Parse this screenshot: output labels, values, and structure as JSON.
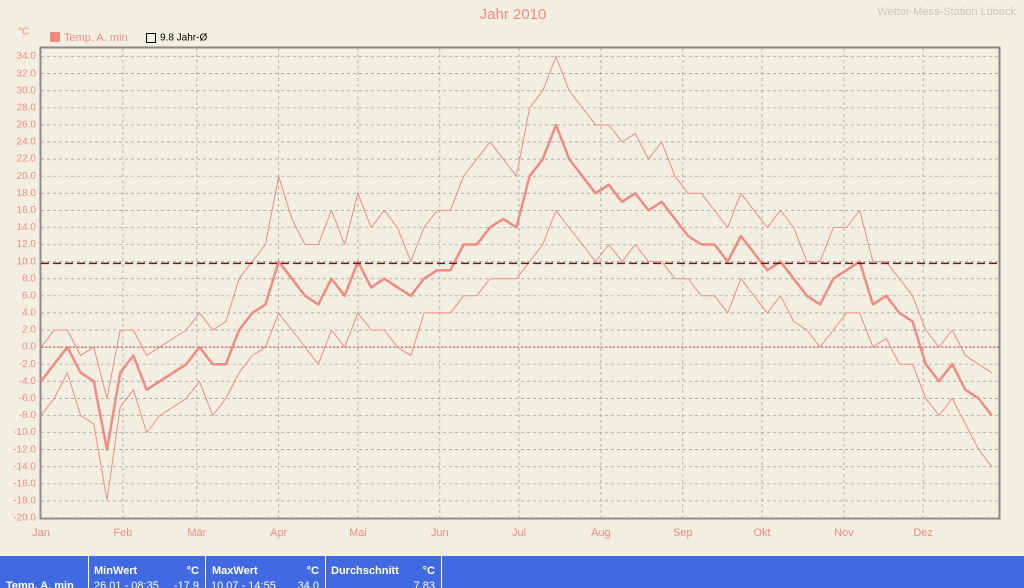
{
  "chart_data": {
    "type": "line",
    "title": "Jahr 2010",
    "station": "Wetter-Mess-Station Lübeck",
    "y_unit": "°C",
    "legend_label": "Temp. A. min",
    "color": "#f08a84",
    "grid": true,
    "reference_line": {
      "value": 9.8,
      "label": "9.8 Jahr-Ø",
      "color": "#7a1010"
    },
    "x": [
      1,
      6,
      11,
      16,
      21,
      26,
      31,
      36,
      41,
      46,
      51,
      56,
      61,
      66,
      71,
      76,
      81,
      86,
      91,
      96,
      101,
      106,
      111,
      116,
      121,
      126,
      131,
      136,
      141,
      146,
      151,
      156,
      161,
      166,
      171,
      176,
      181,
      186,
      191,
      196,
      201,
      206,
      211,
      216,
      221,
      226,
      231,
      236,
      241,
      246,
      251,
      256,
      261,
      266,
      271,
      276,
      281,
      286,
      291,
      296,
      301,
      306,
      311,
      316,
      321,
      326,
      331,
      336,
      341,
      346,
      351,
      356,
      361
    ],
    "series": [
      {
        "width": 1,
        "values": [
          0,
          2,
          2,
          -1,
          0,
          -6,
          2,
          2,
          -1,
          0,
          1,
          2,
          4,
          2,
          3,
          8,
          10,
          12,
          20,
          15,
          12,
          12,
          16,
          12,
          18,
          14,
          16,
          14,
          10,
          14,
          16,
          16,
          20,
          22,
          24,
          22,
          20,
          28,
          30,
          34,
          30,
          28,
          26,
          26,
          24,
          25,
          22,
          24,
          20,
          18,
          18,
          16,
          14,
          18,
          16,
          14,
          16,
          14,
          10,
          10,
          14,
          14,
          16,
          10,
          10,
          8,
          6,
          2,
          0,
          2,
          -1,
          -2,
          -3
        ]
      },
      {
        "width": 2.5,
        "values": [
          -4,
          -2,
          0,
          -3,
          -4,
          -12,
          -3,
          -1,
          -5,
          -4,
          -3,
          -2,
          0,
          -2,
          -2,
          2,
          4,
          5,
          10,
          8,
          6,
          5,
          8,
          6,
          10,
          7,
          8,
          7,
          6,
          8,
          9,
          9,
          12,
          12,
          14,
          15,
          14,
          20,
          22,
          26,
          22,
          20,
          18,
          19,
          17,
          18,
          16,
          17,
          15,
          13,
          12,
          12,
          10,
          13,
          11,
          9,
          10,
          8,
          6,
          5,
          8,
          9,
          10,
          5,
          6,
          4,
          3,
          -2,
          -4,
          -2,
          -5,
          -6,
          -8
        ]
      },
      {
        "width": 1,
        "values": [
          -8,
          -6,
          -3,
          -8,
          -9,
          -17.9,
          -7,
          -5,
          -10,
          -8,
          -7,
          -6,
          -4,
          -8,
          -6,
          -3,
          -1,
          0,
          4,
          2,
          0,
          -2,
          2,
          0,
          4,
          2,
          2,
          0,
          -1,
          4,
          4,
          4,
          6,
          6,
          8,
          8,
          8,
          10,
          12,
          16,
          14,
          12,
          10,
          12,
          10,
          12,
          10,
          10,
          8,
          8,
          6,
          6,
          4,
          8,
          6,
          4,
          6,
          3,
          2,
          0,
          2,
          4,
          4,
          0,
          1,
          -2,
          -2,
          -6,
          -8,
          -6,
          -9,
          -12,
          -14
        ]
      }
    ],
    "xlim": [
      1,
      366
    ],
    "xticks": [
      {
        "value": 1,
        "label": "Jan"
      },
      {
        "value": 32,
        "label": "Feb"
      },
      {
        "value": 60,
        "label": "Mär"
      },
      {
        "value": 91,
        "label": "Apr"
      },
      {
        "value": 121,
        "label": "Mai"
      },
      {
        "value": 152,
        "label": "Jun"
      },
      {
        "value": 182,
        "label": "Jul"
      },
      {
        "value": 213,
        "label": "Aug"
      },
      {
        "value": 244,
        "label": "Sep"
      },
      {
        "value": 274,
        "label": "Okt"
      },
      {
        "value": 305,
        "label": "Nov"
      },
      {
        "value": 335,
        "label": "Dez"
      }
    ],
    "ylim": [
      -20,
      35
    ],
    "yticks": [
      {
        "value": -20,
        "label": "-20.0"
      },
      {
        "value": -18,
        "label": "-18.0"
      },
      {
        "value": -16,
        "label": "-16.0"
      },
      {
        "value": -14,
        "label": "-14.0"
      },
      {
        "value": -12,
        "label": "-12.0"
      },
      {
        "value": -10,
        "label": "-10.0"
      },
      {
        "value": -8,
        "label": "-8.0"
      },
      {
        "value": -6,
        "label": "-6.0"
      },
      {
        "value": -4,
        "label": "-4.0"
      },
      {
        "value": -2,
        "label": "-2.0"
      },
      {
        "value": 0,
        "label": "0.0"
      },
      {
        "value": 2,
        "label": "2.0"
      },
      {
        "value": 4,
        "label": "4.0"
      },
      {
        "value": 6,
        "label": "6.0"
      },
      {
        "value": 8,
        "label": "8.0"
      },
      {
        "value": 10,
        "label": "10.0"
      },
      {
        "value": 12,
        "label": "12.0"
      },
      {
        "value": 14,
        "label": "14.0"
      },
      {
        "value": 16,
        "label": "16.0"
      },
      {
        "value": 18,
        "label": "18.0"
      },
      {
        "value": 20,
        "label": "20.0"
      },
      {
        "value": 22,
        "label": "22.0"
      },
      {
        "value": 24,
        "label": "24.0"
      },
      {
        "value": 26,
        "label": "26.0"
      },
      {
        "value": 28,
        "label": "28.0"
      },
      {
        "value": 30,
        "label": "30.0"
      },
      {
        "value": 32,
        "label": "32.0"
      },
      {
        "value": 34,
        "label": "34.0"
      }
    ]
  },
  "stats_table": {
    "row_label": "Temp. A. min",
    "headers": [
      "MinWert",
      "°C",
      "MaxWert",
      "°C",
      "Durchschnitt",
      "°C"
    ],
    "values": [
      "26.01 - 08:35",
      "-17.9",
      "10.07 - 14:55",
      "34.0",
      "",
      "7.83"
    ]
  }
}
